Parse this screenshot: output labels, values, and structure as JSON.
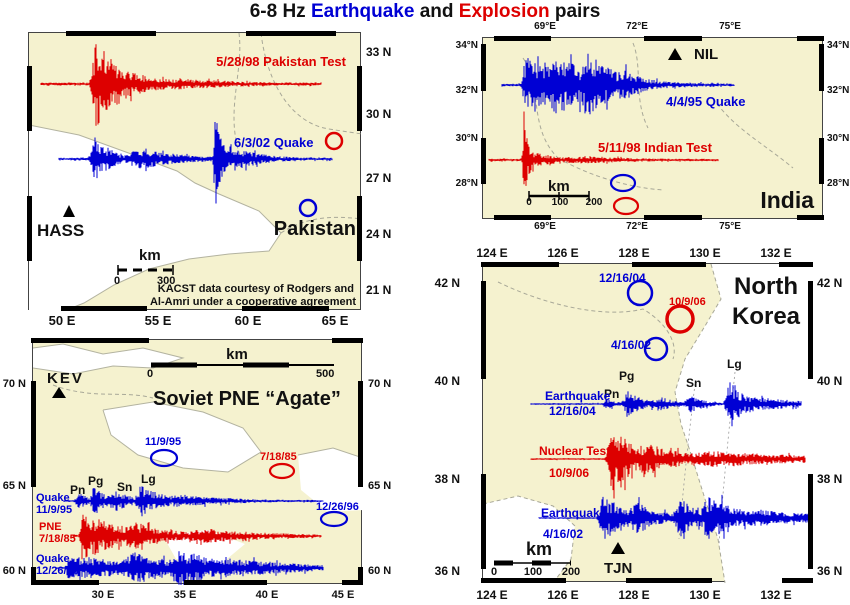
{
  "title": {
    "p1": "6-8 Hz ",
    "p2": "Earthquake",
    "p3": " and ",
    "p4": "Explosion",
    "p5": " pairs"
  },
  "colors": {
    "earthquake": "#0000d4",
    "explosion": "#dd0000",
    "land": "#f5f2cf"
  },
  "panels": {
    "pakistan": {
      "region_label": "Pakistan",
      "station": "HASS",
      "explosion_trace_label": "5/28/98 Pakistan Test",
      "quake_trace_label": "6/3/02 Quake",
      "scale_unit": "km",
      "scale_start": "0",
      "scale_end": "300",
      "credit1": "KACST data courtesy of Rodgers and",
      "credit2": "Al-Amri under a cooperative agreement",
      "lat": [
        "33 N",
        "30 N",
        "27 N",
        "24 N",
        "21 N"
      ],
      "lon": [
        "50 E",
        "55 E",
        "60 E",
        "65 E"
      ]
    },
    "india": {
      "region_label": "India",
      "station": "NIL",
      "quake_trace_label": "4/4/95 Quake",
      "explosion_trace_label": "5/11/98 Indian Test",
      "scale_unit": "km",
      "scale_ticks": [
        "0",
        "100",
        "200"
      ],
      "lat": [
        "34°N",
        "32°N",
        "30°N",
        "28°N"
      ],
      "lon": [
        "69°E",
        "72°E",
        "75°E"
      ]
    },
    "soviet": {
      "title": "Soviet PNE “Agate”",
      "station": "KEV",
      "scale_unit": "km",
      "scale_start": "0",
      "scale_end": "500",
      "quake1_marker": "11/9/95",
      "pne_marker": "7/18/85",
      "quake2_marker": "12/26/96",
      "trace1_line1": "Quake",
      "trace1_line2": "11/9/95",
      "trace2_line1": "PNE",
      "trace2_line2": "7/18/85",
      "trace3_line1": "Quake",
      "trace3_line2": "12/26/96",
      "phases": [
        "Pn",
        "Pg",
        "Sn",
        "Lg"
      ],
      "lat": [
        "70 N",
        "65 N",
        "60 N"
      ],
      "lon": [
        "30 E",
        "35 E",
        "40 E",
        "45 E"
      ]
    },
    "nkorea": {
      "region_line1": "North",
      "region_line2": "Korea",
      "station": "TJN",
      "quake1_marker": "12/16/04",
      "test_marker": "10/9/06",
      "quake2_marker": "4/16/02",
      "trace1_line1": "Earthquake",
      "trace1_line2": "12/16/04",
      "trace2_line1": "Nuclear Test",
      "trace2_line2": "10/9/06",
      "trace3_line1": "Earthquake",
      "trace3_line2": "4/16/02",
      "phases": [
        "Pn",
        "Pg",
        "Sn",
        "Lg"
      ],
      "scale_unit": "km",
      "scale_ticks": [
        "0",
        "100",
        "200"
      ],
      "lat": [
        "42 N",
        "40 N",
        "38 N",
        "36 N"
      ],
      "lon": [
        "124 E",
        "126 E",
        "128 E",
        "130 E",
        "132 E"
      ]
    }
  }
}
